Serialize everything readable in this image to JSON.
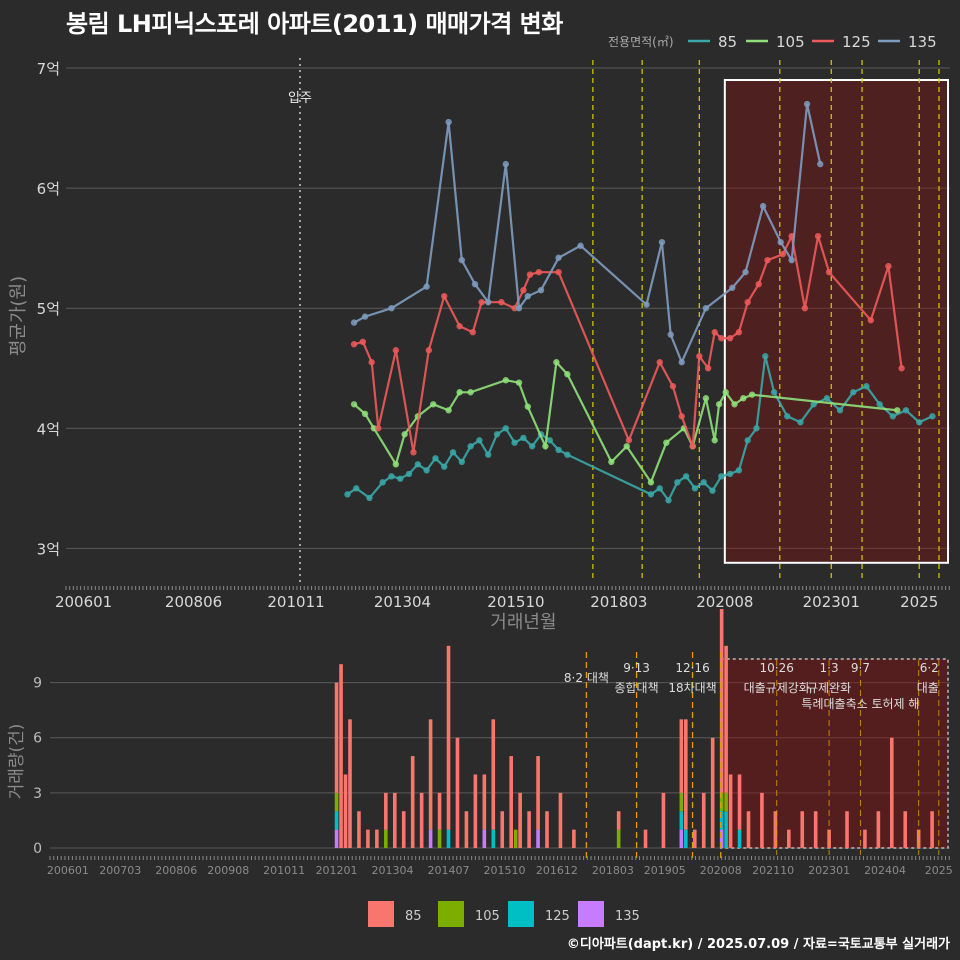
{
  "header": {
    "title": "봉림 LH피닉스포레 아파트(2011) 매매가격 변화"
  },
  "footer": {
    "credit": "©디아파트(dapt.kr) / 2025.07.09 / 자료=국토교통부 실거래가"
  },
  "colors": {
    "s85": "#3aa8a8",
    "s105": "#8fe07a",
    "s125": "#ee5a5a",
    "s135": "#7e9cc0",
    "b85": "#f8766d",
    "b105": "#7cae00",
    "b125": "#00bfc4",
    "b135": "#c77cff",
    "vline": "#d8d000",
    "vline2": "#e0a000",
    "box": "#ffffff"
  },
  "chart_data": [
    {
      "type": "line",
      "title": "봉림 LH피닉스포레 아파트(2011) 매매가격 변화",
      "xlabel": "거래년월",
      "ylabel": "평균가(원)",
      "ylim": [
        2.72,
        7.15
      ],
      "xlim": [
        2005.6,
        2025.7
      ],
      "yticks": [
        3,
        4,
        5,
        6,
        7
      ],
      "ytick_labels": [
        "3억",
        "4억",
        "5억",
        "6억",
        "7억"
      ],
      "xtick_values": [
        2006.0,
        2008.5,
        2010.83,
        2013.25,
        2015.83,
        2018.17,
        2020.58,
        2023.0,
        2025.0
      ],
      "xtick_labels": [
        "200601",
        "200806",
        "201011",
        "201304",
        "201510",
        "201803",
        "202008",
        "202301",
        "2025"
      ],
      "legend_title": "전용면적(㎡)",
      "legend": [
        "85",
        "105",
        "125",
        "135"
      ],
      "annotation": {
        "label": "입주",
        "x": 2010.92
      },
      "policy_lines": [
        2017.58,
        2018.7,
        2020.0,
        2021.83,
        2023.0,
        2023.7,
        2025.0,
        2025.45
      ],
      "highlight": {
        "x0": 2020.58,
        "x1": 2025.7,
        "y0": 2.88,
        "y1": 6.9
      },
      "series": [
        {
          "name": "85",
          "x": [
            2012.0,
            2012.2,
            2012.5,
            2012.8,
            2013.0,
            2013.2,
            2013.4,
            2013.6,
            2013.8,
            2014.0,
            2014.2,
            2014.4,
            2014.6,
            2014.8,
            2015.0,
            2015.2,
            2015.4,
            2015.6,
            2015.8,
            2016.0,
            2016.2,
            2016.4,
            2016.6,
            2016.8,
            2017.0,
            2018.9,
            2019.1,
            2019.3,
            2019.5,
            2019.7,
            2019.9,
            2020.1,
            2020.3,
            2020.5,
            2020.7,
            2020.9,
            2021.1,
            2021.3,
            2021.5,
            2021.7,
            2022.0,
            2022.3,
            2022.6,
            2022.9,
            2023.2,
            2023.5,
            2023.8,
            2024.1,
            2024.4,
            2024.7,
            2025.0,
            2025.3
          ],
          "values": [
            3.45,
            3.5,
            3.42,
            3.55,
            3.6,
            3.58,
            3.62,
            3.7,
            3.65,
            3.75,
            3.68,
            3.8,
            3.72,
            3.85,
            3.9,
            3.78,
            3.95,
            4.0,
            3.88,
            3.92,
            3.85,
            3.95,
            3.9,
            3.82,
            3.78,
            3.45,
            3.5,
            3.4,
            3.55,
            3.6,
            3.5,
            3.55,
            3.48,
            3.6,
            3.62,
            3.65,
            3.9,
            4.0,
            4.6,
            4.3,
            4.1,
            4.05,
            4.2,
            4.25,
            4.15,
            4.3,
            4.35,
            4.2,
            4.1,
            4.15,
            4.05,
            4.1
          ]
        },
        {
          "name": "105",
          "x": [
            2012.15,
            2012.4,
            2012.6,
            2013.1,
            2013.3,
            2013.6,
            2013.95,
            2014.3,
            2014.55,
            2014.8,
            2015.6,
            2015.9,
            2016.1,
            2016.5,
            2016.75,
            2017.0,
            2018.0,
            2018.35,
            2018.9,
            2019.25,
            2019.65,
            2019.85,
            2020.15,
            2020.35,
            2020.45,
            2020.6,
            2020.8,
            2021.0,
            2021.2,
            2024.5
          ],
          "values": [
            4.2,
            4.12,
            4.0,
            3.7,
            3.95,
            4.1,
            4.2,
            4.15,
            4.3,
            4.3,
            4.4,
            4.38,
            4.18,
            3.85,
            4.55,
            4.45,
            3.72,
            3.85,
            3.55,
            3.88,
            4.0,
            3.85,
            4.25,
            3.9,
            4.2,
            4.3,
            4.2,
            4.25,
            4.28,
            4.15
          ]
        },
        {
          "name": "125",
          "x": [
            2012.15,
            2012.35,
            2012.55,
            2012.7,
            2013.1,
            2013.5,
            2013.85,
            2014.2,
            2014.55,
            2014.85,
            2015.05,
            2015.5,
            2015.8,
            2016.0,
            2016.15,
            2016.35,
            2016.8,
            2018.4,
            2019.1,
            2019.4,
            2019.6,
            2019.85,
            2020.0,
            2020.2,
            2020.35,
            2020.5,
            2020.7,
            2020.9,
            2021.1,
            2021.35,
            2021.55,
            2021.9,
            2022.1,
            2022.4,
            2022.7,
            2022.95,
            2023.9,
            2024.3,
            2024.6
          ],
          "values": [
            4.7,
            4.72,
            4.55,
            4.0,
            4.65,
            3.8,
            4.65,
            5.1,
            4.85,
            4.8,
            5.05,
            5.05,
            5.0,
            5.15,
            5.28,
            5.3,
            5.3,
            3.9,
            4.55,
            4.35,
            4.1,
            3.85,
            4.6,
            4.5,
            4.8,
            4.75,
            4.75,
            4.8,
            5.05,
            5.2,
            5.4,
            5.45,
            5.6,
            5.0,
            5.6,
            5.3,
            4.9,
            5.35,
            4.5
          ]
        },
        {
          "name": "135",
          "x": [
            2012.15,
            2012.4,
            2013.0,
            2013.8,
            2014.3,
            2014.6,
            2014.9,
            2015.2,
            2015.6,
            2015.9,
            2016.1,
            2016.4,
            2016.8,
            2017.3,
            2018.8,
            2019.15,
            2019.35,
            2019.6,
            2020.15,
            2020.75,
            2021.05,
            2021.45,
            2021.85,
            2022.1,
            2022.45,
            2022.75
          ],
          "values": [
            4.88,
            4.93,
            5.0,
            5.18,
            6.55,
            5.4,
            5.2,
            5.05,
            6.2,
            5.0,
            5.1,
            5.15,
            5.42,
            5.52,
            5.03,
            5.55,
            4.78,
            4.55,
            5.0,
            5.17,
            5.3,
            5.85,
            5.55,
            5.4,
            6.7,
            6.2
          ]
        }
      ]
    },
    {
      "type": "bar",
      "ylabel": "거래량(건)",
      "ylim": [
        0,
        10.5
      ],
      "yticks": [
        0,
        3,
        6,
        9
      ],
      "ytick_labels": [
        "0",
        "3",
        "6",
        "9"
      ],
      "xtick_labels": [
        "200601",
        "200703",
        "200806",
        "200908",
        "201011",
        "201201",
        "201304",
        "201407",
        "201510",
        "201612",
        "201803",
        "201905",
        "202008",
        "202110",
        "202301",
        "202404",
        "2025"
      ],
      "legend": [
        "85",
        "105",
        "125",
        "135"
      ],
      "policy_labels": [
        {
          "line1": "8·2 대책",
          "line2": "",
          "x": 2017.58
        },
        {
          "line1": "9·13",
          "line2": "종합대책",
          "x": 2018.7
        },
        {
          "line1": "12·16",
          "line2": "18차대책",
          "x": 2019.95
        },
        {
          "line1": "10·26",
          "line2": "대출규제강화",
          "x": 2021.83
        },
        {
          "line1": "1·3",
          "line2": "규제완화",
          "x": 2023.0
        },
        {
          "line1": "9·7",
          "line2": "특례대출축소 토허제 해",
          "x": 2023.7
        },
        {
          "line1": "6·2",
          "line2": "대출",
          "x": 2025.45
        }
      ],
      "highlight": {
        "x0": 2020.58,
        "x1": 2025.7
      },
      "series": [
        {
          "name": "85",
          "x": [
            2012.0,
            2012.1,
            2012.2,
            2012.3,
            2012.5,
            2012.7,
            2012.9,
            2013.1,
            2013.3,
            2013.5,
            2013.7,
            2013.9,
            2014.1,
            2014.3,
            2014.5,
            2014.7,
            2014.9,
            2015.1,
            2015.3,
            2015.5,
            2015.7,
            2015.9,
            2016.1,
            2016.3,
            2016.5,
            2016.7,
            2017.0,
            2017.3,
            2018.3,
            2018.9,
            2019.3,
            2019.7,
            2019.8,
            2020.0,
            2020.2,
            2020.4,
            2020.6,
            2020.7,
            2020.8,
            2021.0,
            2021.2,
            2021.5,
            2021.8,
            2022.1,
            2022.4,
            2022.7,
            2023.0,
            2023.4,
            2023.8,
            2024.1,
            2024.4,
            2024.7,
            2025.0,
            2025.3
          ],
          "values": [
            6,
            10,
            4,
            7,
            2,
            1,
            1,
            2,
            3,
            2,
            5,
            3,
            6,
            2,
            10,
            6,
            2,
            4,
            3,
            6,
            2,
            5,
            3,
            2,
            4,
            2,
            3,
            1,
            1,
            1,
            3,
            4,
            6,
            1,
            3,
            6,
            10,
            8,
            4,
            3,
            2,
            3,
            2,
            1,
            2,
            2,
            1,
            2,
            1,
            2,
            6,
            2,
            1,
            2
          ]
        },
        {
          "name": "105",
          "x": [
            2012.0,
            2013.1,
            2014.3,
            2016.0,
            2018.3,
            2019.7,
            2020.6,
            2020.7
          ],
          "values": [
            1,
            1,
            1,
            1,
            1,
            1,
            1,
            1
          ]
        },
        {
          "name": "125",
          "x": [
            2012.0,
            2014.5,
            2015.5,
            2019.7,
            2019.8,
            2020.6,
            2020.7,
            2021.0
          ],
          "values": [
            1,
            1,
            1,
            1,
            1,
            1,
            2,
            1
          ]
        },
        {
          "name": "135",
          "x": [
            2012.0,
            2014.1,
            2015.3,
            2016.5,
            2019.7,
            2020.6
          ],
          "values": [
            1,
            1,
            1,
            1,
            1,
            1
          ]
        }
      ]
    }
  ]
}
